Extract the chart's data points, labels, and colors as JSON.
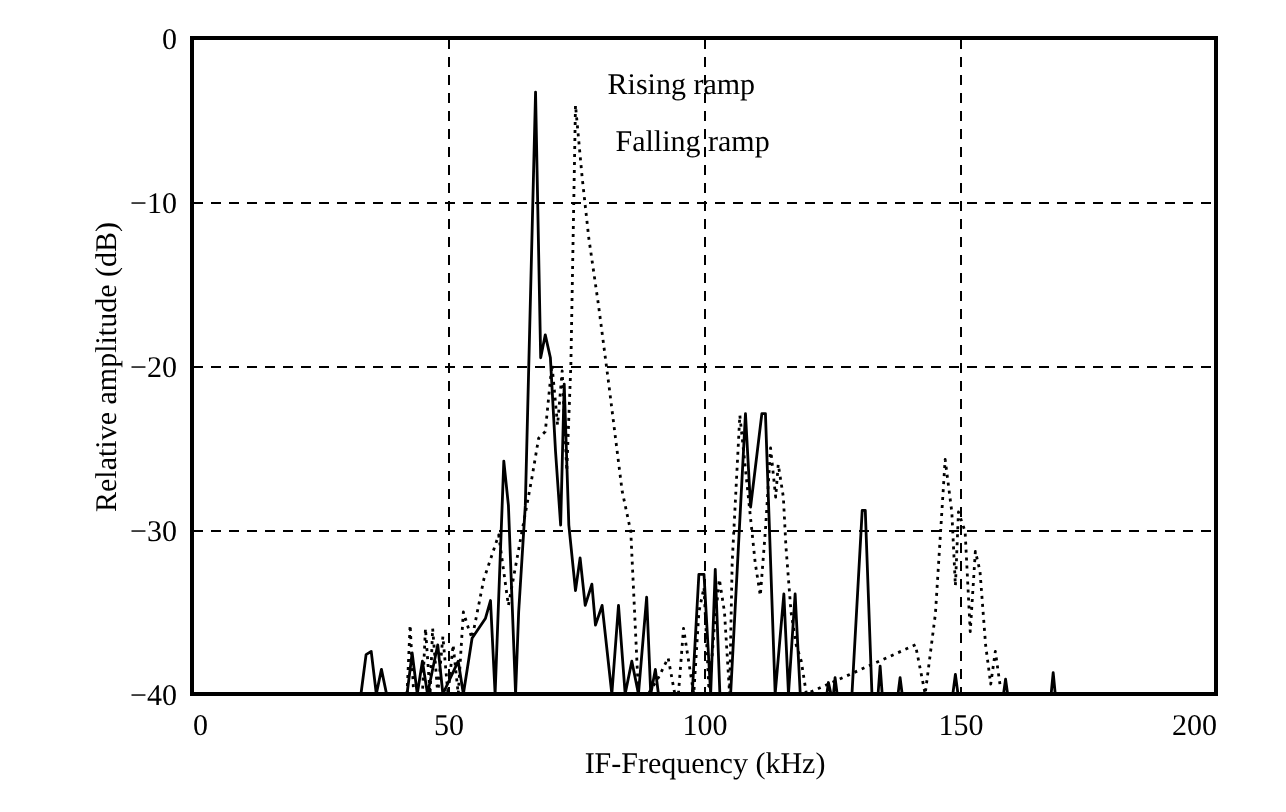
{
  "chart_data": {
    "type": "line",
    "xlabel": "IF-Frequency  (kHz)",
    "ylabel": "Relative amplitude  (dB)",
    "xlim": [
      0,
      200
    ],
    "xticks": [
      0,
      50,
      100,
      150,
      200
    ],
    "ylim": [
      -40,
      0
    ],
    "yticks": [
      -40,
      -30,
      -20,
      -10,
      0
    ],
    "grid": true,
    "series": [
      {
        "color": "#000000",
        "line_style": "solid",
        "x": [
          33,
          34,
          35,
          36,
          37,
          38,
          42,
          43,
          44,
          45,
          46,
          48,
          49,
          52,
          53,
          54.7,
          57.3,
          58.3,
          59.2,
          60.9,
          61.8,
          63.2,
          63.8,
          65.1,
          67.1,
          68.1,
          69,
          70,
          71,
          72,
          72.7,
          73.6,
          74.9,
          75.8,
          76.8,
          78.1,
          78.8,
          80.1,
          82,
          83.3,
          84.6,
          85.9,
          87.2,
          88.8,
          89.6,
          90.5,
          91.1,
          97.7,
          99,
          100,
          101.3,
          102.2,
          103.1,
          105.2,
          108.1,
          109.1,
          111.3,
          112,
          113.9,
          115.6,
          116.5,
          117.8,
          118.8,
          124,
          124.3,
          124.8,
          125.3,
          125.6,
          126,
          128.9,
          130.9,
          131.5,
          132.8,
          134,
          134.4,
          134.8,
          137.9,
          138.3,
          138.7,
          148.6,
          149.1,
          149.6,
          158.5,
          158.9,
          159.3,
          167.8,
          168.2,
          168.6
        ],
        "values": [
          -40,
          -37.6,
          -37.4,
          -40,
          -38.5,
          -40,
          -40,
          -37.5,
          -40,
          -38,
          -40,
          -37,
          -40,
          -38,
          -40,
          -36.6,
          -35.4,
          -34.3,
          -40,
          -25.8,
          -28.5,
          -40,
          -35,
          -28.5,
          -3.3,
          -19.5,
          -18.1,
          -19.5,
          -25.2,
          -29.7,
          -21.1,
          -29.7,
          -33.7,
          -31.7,
          -34.6,
          -33.3,
          -35.8,
          -34.6,
          -40,
          -34.6,
          -40,
          -38,
          -40,
          -34.1,
          -40,
          -38.5,
          -40,
          -40,
          -32.7,
          -32.7,
          -40,
          -32.4,
          -40,
          -40,
          -22.9,
          -28.6,
          -22.9,
          -22.9,
          -40,
          -33.9,
          -40,
          -33.9,
          -40,
          -40,
          -39.3,
          -40,
          -40,
          -39,
          -40,
          -40,
          -28.8,
          -28.8,
          -40,
          -40,
          -38.3,
          -40,
          -40,
          -39,
          -40,
          -40,
          -38.8,
          -40,
          -40,
          -39.1,
          -40,
          -40,
          -38.7,
          -40
        ]
      },
      {
        "color": "#000000",
        "line_style": "dotted",
        "x": [
          42,
          42.6,
          43.3,
          45,
          45.6,
          46.5,
          47,
          48,
          49,
          50,
          51,
          52,
          53,
          54,
          54.7,
          57,
          59.9,
          61.8,
          64.5,
          66.4,
          67.7,
          69,
          70.3,
          71.4,
          72.3,
          73.2,
          74,
          74.9,
          76.2,
          77.5,
          79.4,
          81.4,
          84,
          85.7,
          87.2,
          89.1,
          91.1,
          93,
          94.3,
          95,
          96,
          97,
          98,
          99,
          100,
          101,
          102,
          103,
          104,
          105,
          105.5,
          107,
          108,
          109,
          110,
          111,
          112,
          113,
          114,
          114.5,
          115.5,
          116,
          117,
          118,
          119,
          120,
          141.3,
          143.2,
          145.2,
          147.1,
          148.4,
          149.1,
          149.7,
          151,
          152,
          153,
          153.9,
          155,
          156,
          156.9,
          157.8
        ],
        "values": [
          -40,
          -35.8,
          -40,
          -40,
          -36,
          -40,
          -36,
          -40,
          -36.5,
          -40,
          -37,
          -40,
          -35,
          -36,
          -36.6,
          -33,
          -30.3,
          -34.6,
          -30,
          -26.8,
          -24.4,
          -24,
          -19.9,
          -23.6,
          -20.3,
          -26.4,
          -19.9,
          -4.1,
          -8.5,
          -12.2,
          -16.3,
          -21.1,
          -27.6,
          -30.1,
          -40,
          -40,
          -39,
          -37.8,
          -40,
          -40,
          -36,
          -38,
          -40,
          -35,
          -33.5,
          -40,
          -36,
          -33,
          -35,
          -40,
          -32,
          -23,
          -26,
          -29,
          -32,
          -34,
          -30,
          -25,
          -28,
          -26,
          -28,
          -31,
          -35,
          -37,
          -38,
          -40,
          -37,
          -40,
          -35.1,
          -25.7,
          -28.9,
          -33.4,
          -28.9,
          -30.1,
          -36.2,
          -31.3,
          -32.5,
          -37,
          -39.4,
          -37.4,
          -39.4
        ]
      }
    ],
    "annotations": [
      {
        "text": "Rising ramp",
        "x": 67.1,
        "y": -3.3
      },
      {
        "text": "Falling ramp",
        "x": 74.9,
        "y": -4.1
      }
    ]
  }
}
